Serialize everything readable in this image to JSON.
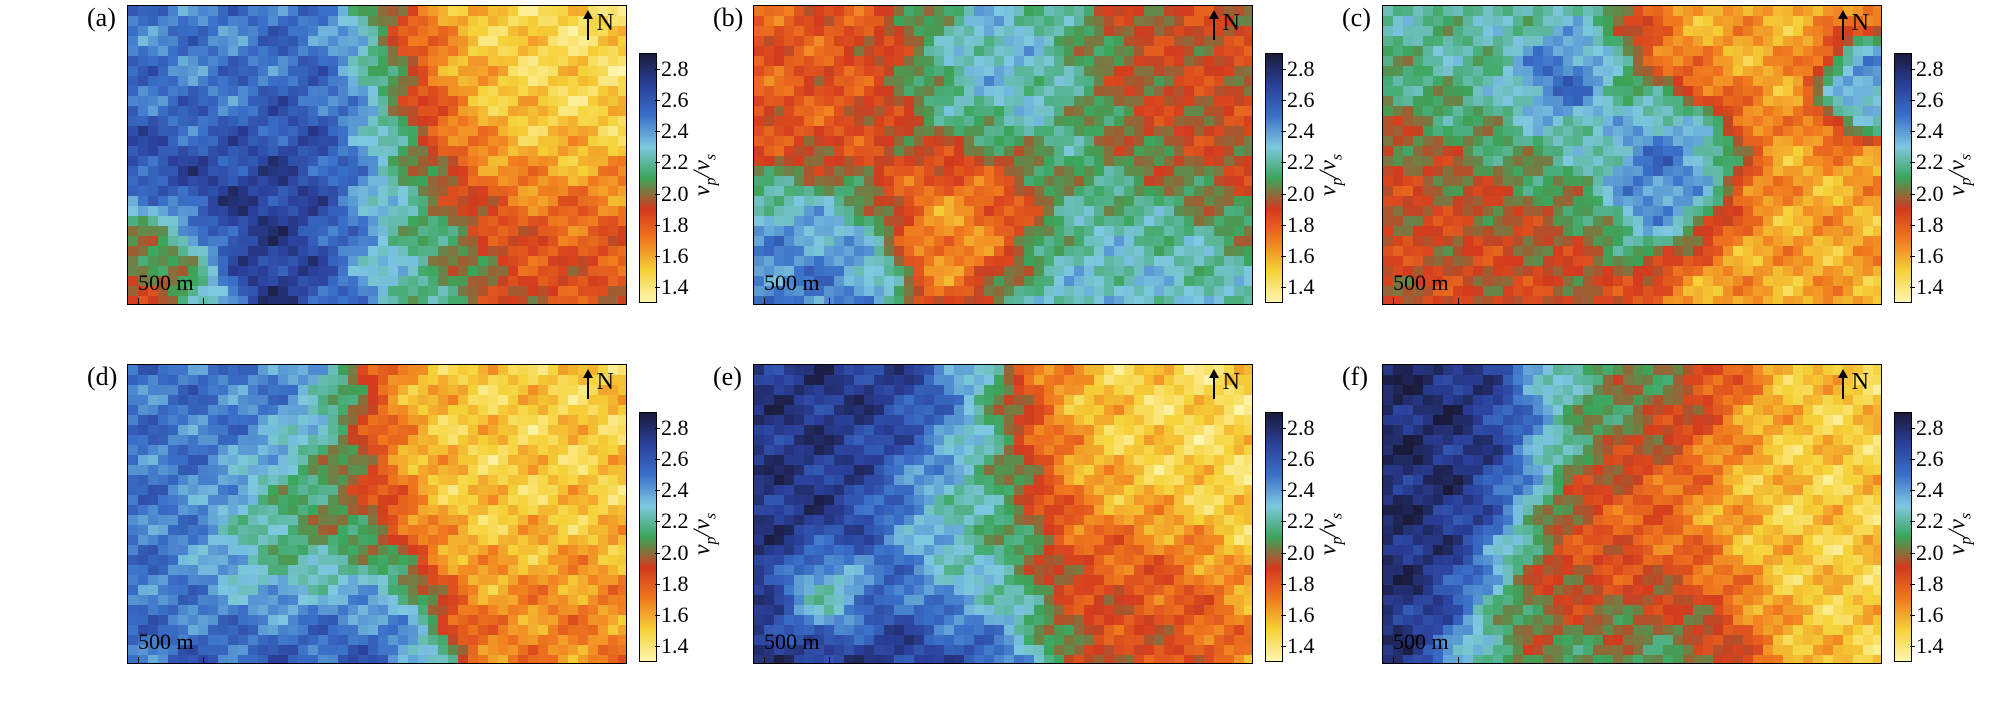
{
  "panels": [
    {
      "label": "(a)",
      "north": "N",
      "scale": "500 m",
      "cbar_label": "vp/vs",
      "pattern": "a"
    },
    {
      "label": "(b)",
      "north": "N",
      "scale": "500 m",
      "cbar_label": "vp/vs",
      "pattern": "b"
    },
    {
      "label": "(c)",
      "north": "N",
      "scale": "500 m",
      "cbar_label": "vp/vs",
      "pattern": "c"
    },
    {
      "label": "(d)",
      "north": "N",
      "scale": "500 m",
      "cbar_label": "vp/vs",
      "pattern": "d"
    },
    {
      "label": "(e)",
      "north": "N",
      "scale": "500 m",
      "cbar_label": "vp/vs",
      "pattern": "e"
    },
    {
      "label": "(f)",
      "north": "N",
      "scale": "500 m",
      "cbar_label": "vp/vs",
      "pattern": "f"
    }
  ],
  "colorbar": {
    "ticks": [
      "2.8",
      "2.6",
      "2.4",
      "2.2",
      "2.0",
      "1.8",
      "1.6",
      "1.4"
    ],
    "min": 1.3,
    "max": 2.9,
    "colors": [
      "#1a1a3a",
      "#2a3f9a",
      "#3a70c8",
      "#7ec8e0",
      "#3aa55a",
      "#d33a1e",
      "#f07a1e",
      "#f5d238",
      "#fff6b0"
    ]
  }
}
